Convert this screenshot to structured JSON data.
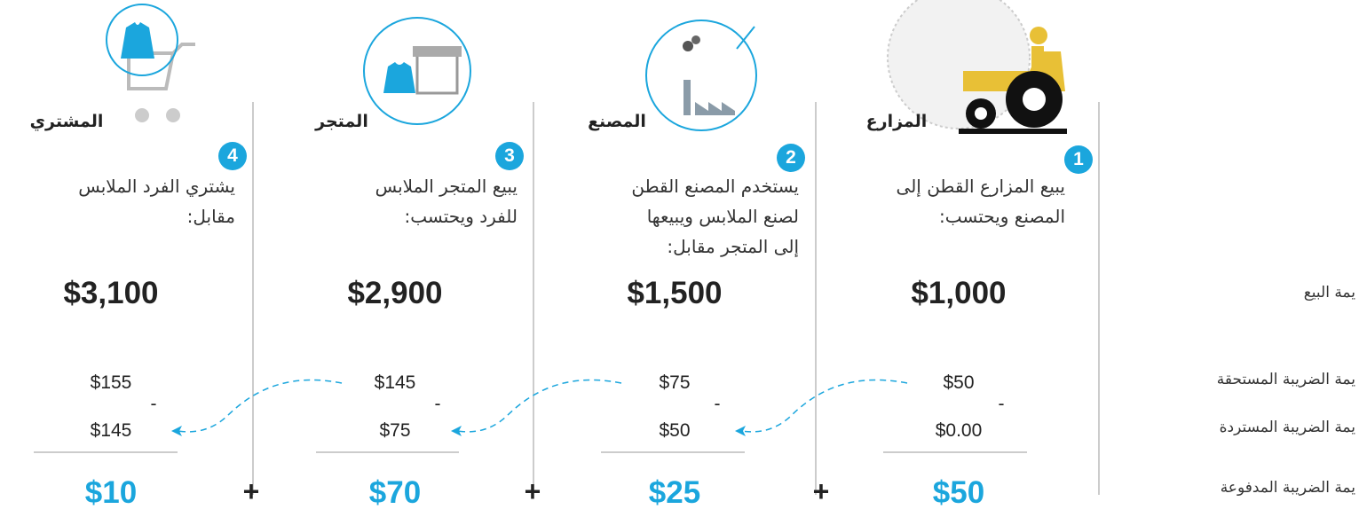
{
  "row_labels": [
    "يمة البيع",
    "يمة الضريبة المستحقة",
    "يمة الضريبة المستردة",
    "يمة الضريبة المدفوعة"
  ],
  "minus": "-",
  "plus": "+",
  "stages": [
    {
      "number": "1",
      "name": "المزارع",
      "description": [
        "يبيع المزارع القطن إلى",
        "المصنع ويحتسب:"
      ],
      "sale_value": "$1,000",
      "tax_due": "$50",
      "tax_refunded": "$0.00",
      "tax_paid": "$50"
    },
    {
      "number": "2",
      "name": "المصنع",
      "description": [
        "يستخدم المصنع القطن",
        "لصنع الملابس ويبيعها",
        "إلى المتجر مقابل:"
      ],
      "sale_value": "$1,500",
      "tax_due": "$75",
      "tax_refunded": "$50",
      "tax_paid": "$25"
    },
    {
      "number": "3",
      "name": "المتجر",
      "description": [
        "يبيع المتجر الملابس",
        "للفرد ويحتسب:"
      ],
      "sale_value": "$2,900",
      "tax_due": "$145",
      "tax_refunded": "$75",
      "tax_paid": "$70"
    },
    {
      "number": "4",
      "name": "المشتري",
      "description": [
        "يشتري الفرد الملابس",
        "مقابل:"
      ],
      "sale_value": "$3,100",
      "tax_due": "$155",
      "tax_refunded": "$145",
      "tax_paid": "$10"
    }
  ]
}
